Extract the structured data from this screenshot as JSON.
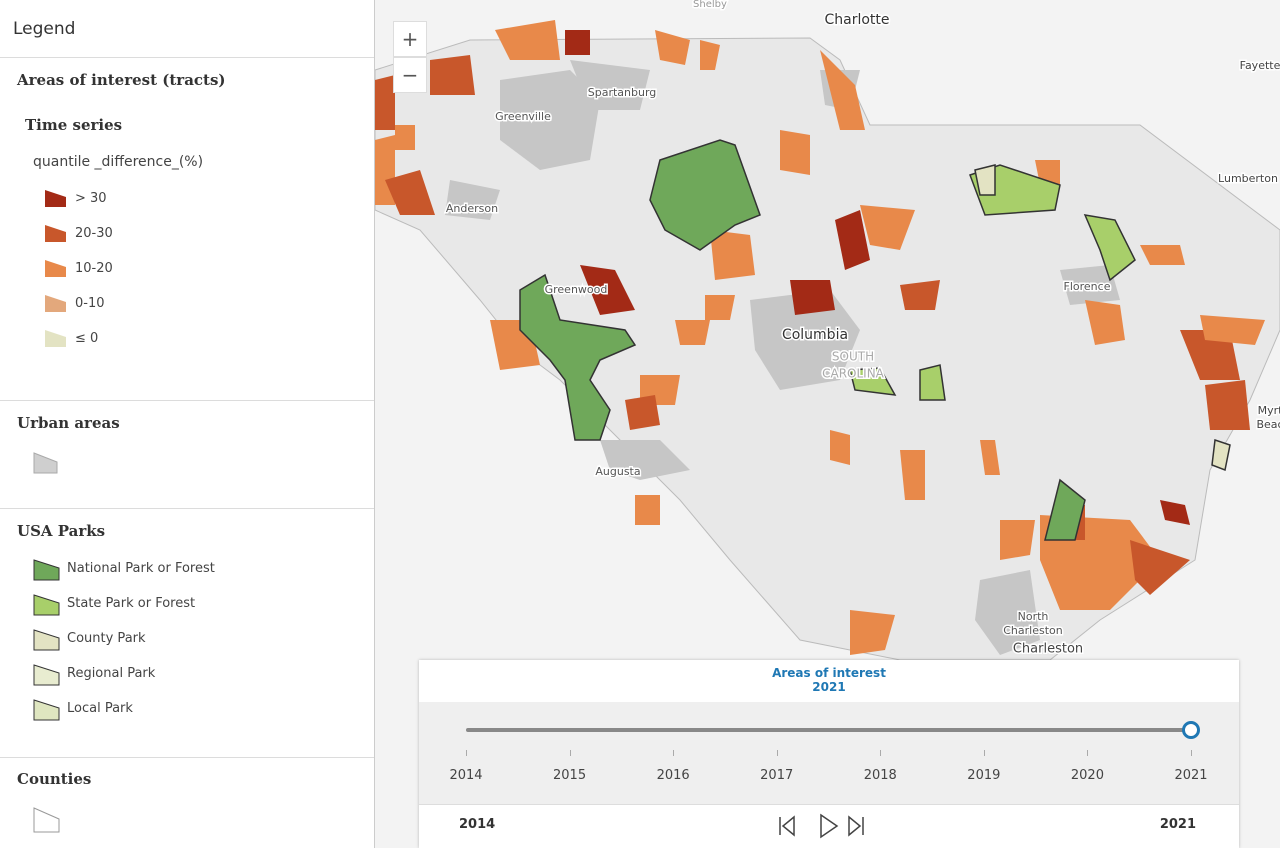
{
  "legend": {
    "title": "Legend",
    "areas": {
      "title": "Areas of interest (tracts)",
      "subtitle": "Time series",
      "field": "quantile _difference_(%)",
      "items": [
        "> 30",
        "20-30",
        "10-20",
        "0-10",
        "≤ 0"
      ]
    },
    "urban": {
      "title": "Urban areas"
    },
    "parks": {
      "title": "USA Parks",
      "items": [
        "National Park or Forest",
        "State Park or Forest",
        "County Park",
        "Regional Park",
        "Local Park"
      ]
    },
    "counties": {
      "title": "Counties"
    }
  },
  "map": {
    "zoom_in": "+",
    "zoom_out": "−",
    "labels": [
      "Shelby",
      "Charlotte",
      "Fayette",
      "Lumberton",
      "Spartanburg",
      "Greenville",
      "Anderson",
      "Greenwood",
      "Columbia",
      "SOUTH",
      "CAROLINA",
      "Augusta",
      "Florence",
      "Myrt",
      "Beac",
      "North",
      "Charleston",
      "Charleston"
    ]
  },
  "time_slider": {
    "layer": "Areas of interest",
    "current": "2021",
    "ticks": [
      2014,
      2015,
      2016,
      2017,
      2018,
      2019,
      2020,
      2021
    ],
    "start": "2014",
    "end": "2021"
  }
}
